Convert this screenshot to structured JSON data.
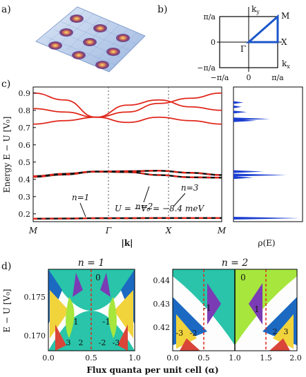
{
  "panels": {
    "a": "a)",
    "b": "b)",
    "c": "c)",
    "d": "d)"
  },
  "brillouin": {
    "ky_label": "k",
    "ky_sub": "y",
    "kx_label": "k",
    "kx_sub": "x",
    "y_ticks": [
      "π/a",
      "0",
      "−π/a"
    ],
    "x_ticks": [
      "−π/a",
      "0",
      "π/a"
    ],
    "points": {
      "gamma": "Γ",
      "x": "X",
      "m": "M"
    }
  },
  "chart_data": [
    {
      "type": "line",
      "ylabel": "Energy E − U [V₀]",
      "xlabel": "|k|",
      "x_ticks": [
        "M",
        "Γ",
        "X",
        "M"
      ],
      "y_ticks": [
        0.9,
        0.8,
        0.7,
        0.6,
        0.5,
        0.4,
        0.3,
        0.2
      ],
      "ylim": [
        0.155,
        0.935
      ],
      "annotations": [
        "n=3",
        "n=2",
        "n=1",
        "U = −V₀ = −8.4 meV"
      ],
      "series": [
        {
          "x": [
            0,
            0.5,
            1,
            1.5,
            2,
            2.5,
            3
          ],
          "values": [
            0.9,
            0.86,
            0.76,
            0.73,
            0.76,
            0.74,
            0.72
          ]
        },
        {
          "x": [
            0,
            0.5,
            1,
            1.5,
            2,
            2.5,
            3
          ],
          "values": [
            0.81,
            0.79,
            0.76,
            0.79,
            0.84,
            0.87,
            0.9
          ]
        },
        {
          "x": [
            0,
            0.5,
            1,
            1.5,
            2,
            2.5,
            3
          ],
          "values": [
            0.72,
            0.74,
            0.76,
            0.83,
            0.86,
            0.82,
            0.8
          ]
        },
        {
          "x": [
            0,
            0.5,
            1,
            1.5,
            2,
            2.5,
            3
          ],
          "values": [
            0.415,
            0.428,
            0.445,
            0.442,
            0.425,
            0.412,
            0.41
          ]
        },
        {
          "x": [
            0,
            0.5,
            1,
            1.5,
            2,
            2.5,
            3
          ],
          "values": [
            0.418,
            0.432,
            0.445,
            0.447,
            0.45,
            0.438,
            0.425
          ]
        },
        {
          "x": [
            0,
            0.5,
            1,
            1.5,
            2,
            2.5,
            3
          ],
          "values": [
            0.172,
            0.173,
            0.175,
            0.175,
            0.176,
            0.176,
            0.176
          ]
        }
      ]
    },
    {
      "type": "area",
      "xlabel": "ρ(E)",
      "peaks": [
        {
          "y": 0.845,
          "value": 0.15
        },
        {
          "y": 0.82,
          "value": 0.12
        },
        {
          "y": 0.79,
          "value": 0.2
        },
        {
          "y": 0.75,
          "value": 0.55
        },
        {
          "y": 0.74,
          "value": 0.35
        },
        {
          "y": 0.445,
          "value": 0.45
        },
        {
          "y": 0.425,
          "value": 0.8
        },
        {
          "y": 0.41,
          "value": 0.3
        },
        {
          "y": 0.175,
          "value": 1.0
        }
      ]
    },
    {
      "type": "heatmap",
      "title": "n = 1",
      "ylabel": "E − U [V₀]",
      "x_ticks": [
        "0.0",
        "0.5",
        "1.0"
      ],
      "y_ticks": [
        "0.175",
        "0.170"
      ],
      "xlim": [
        0,
        1
      ],
      "ylim": [
        0.168,
        0.179
      ],
      "labels": [
        "0",
        "1",
        "-1",
        "3",
        "2",
        "-2",
        "-3"
      ]
    },
    {
      "type": "heatmap",
      "title": "n = 2",
      "x_ticks": [
        "0.0",
        "0.5",
        "1.0",
        "1.5",
        "2.0"
      ],
      "y_ticks": [
        "0.44",
        "0.43",
        "0.42"
      ],
      "xlim": [
        0,
        2
      ],
      "ylim": [
        0.414,
        0.445
      ],
      "labels": [
        "0",
        "-1",
        "1",
        "-3",
        "-2",
        "2",
        "3"
      ]
    }
  ],
  "flux_xlabel": "Flux quanta per unit cell (α)"
}
